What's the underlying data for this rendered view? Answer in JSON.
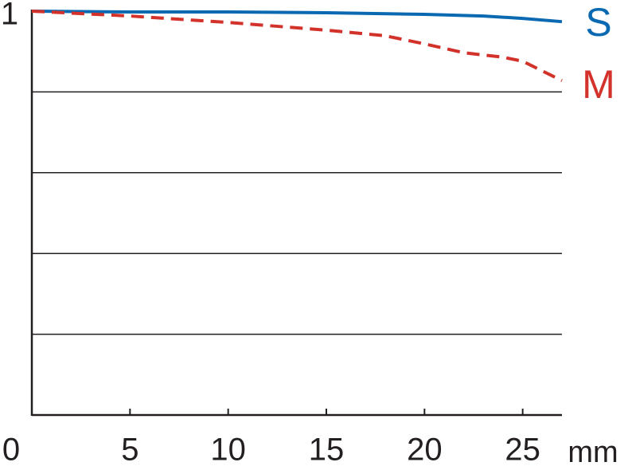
{
  "chart_data": {
    "type": "line",
    "x_label": "mm",
    "xlim": [
      0,
      27
    ],
    "xticks": [
      0,
      5,
      10,
      15,
      20,
      25
    ],
    "ylim": [
      0,
      1
    ],
    "yticks": [
      1
    ],
    "grid_lines": [
      0.2,
      0.4,
      0.6,
      0.8
    ],
    "series": [
      {
        "name": "S",
        "color": "#0a69b1",
        "dash": false,
        "x": [
          0,
          5,
          10,
          15,
          20,
          23,
          25,
          27
        ],
        "values": [
          1.0,
          0.998,
          0.998,
          0.996,
          0.992,
          0.988,
          0.982,
          0.974
        ]
      },
      {
        "name": "M",
        "color": "#d3322b",
        "dash": true,
        "x": [
          0,
          5,
          10,
          15,
          18,
          20,
          22,
          24,
          25,
          27
        ],
        "values": [
          1.0,
          0.988,
          0.972,
          0.953,
          0.939,
          0.919,
          0.897,
          0.886,
          0.876,
          0.828
        ]
      }
    ]
  }
}
